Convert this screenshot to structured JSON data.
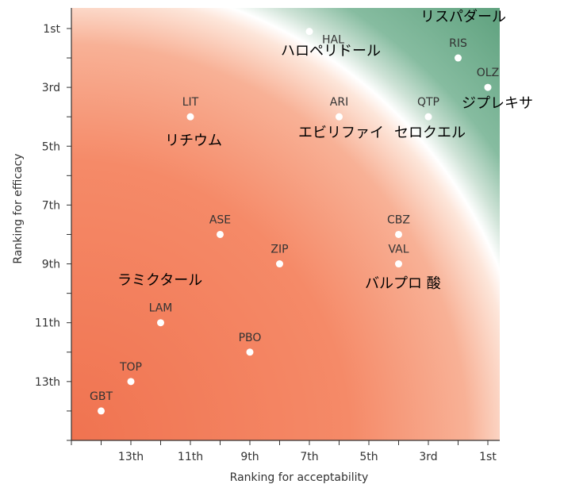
{
  "chart_data": {
    "type": "scatter",
    "xlabel": "Ranking for acceptability",
    "ylabel": "Ranking for efficacy",
    "xlim": [
      15,
      0.6
    ],
    "ylim": [
      15,
      0.3
    ],
    "x_ticks": [
      {
        "value": 13,
        "label": "13th"
      },
      {
        "value": 11,
        "label": "11th"
      },
      {
        "value": 9,
        "label": "9th"
      },
      {
        "value": 7,
        "label": "7th"
      },
      {
        "value": 5,
        "label": "5th"
      },
      {
        "value": 3,
        "label": "3rd"
      },
      {
        "value": 1,
        "label": "1st"
      }
    ],
    "y_ticks": [
      {
        "value": 1,
        "label": "1st"
      },
      {
        "value": 3,
        "label": "3rd"
      },
      {
        "value": 5,
        "label": "5th"
      },
      {
        "value": 7,
        "label": "7th"
      },
      {
        "value": 9,
        "label": "9th"
      },
      {
        "value": 11,
        "label": "11th"
      },
      {
        "value": 13,
        "label": "13th"
      }
    ],
    "points": [
      {
        "label": "HAL",
        "x": 7,
        "y": 1.1
      },
      {
        "label": "RIS",
        "x": 2,
        "y": 2
      },
      {
        "label": "OLZ",
        "x": 1,
        "y": 3
      },
      {
        "label": "LIT",
        "x": 11,
        "y": 4
      },
      {
        "label": "ARI",
        "x": 6,
        "y": 4
      },
      {
        "label": "QTP",
        "x": 3,
        "y": 4
      },
      {
        "label": "ASE",
        "x": 10,
        "y": 8
      },
      {
        "label": "CBZ",
        "x": 4,
        "y": 8
      },
      {
        "label": "ZIP",
        "x": 8,
        "y": 9
      },
      {
        "label": "VAL",
        "x": 4,
        "y": 9
      },
      {
        "label": "LAM",
        "x": 12,
        "y": 11
      },
      {
        "label": "PBO",
        "x": 9,
        "y": 12
      },
      {
        "label": "TOP",
        "x": 13,
        "y": 13
      },
      {
        "label": "GBT",
        "x": 14,
        "y": 14
      }
    ],
    "annotations": [
      {
        "text": "リスパダール"
      },
      {
        "text": "ハロペリドール"
      },
      {
        "text": "ジプレキサ"
      },
      {
        "text": "リチウム"
      },
      {
        "text": "エビリファイ"
      },
      {
        "text": "セロクエル"
      },
      {
        "text": "ラミクタール"
      },
      {
        "text": "バルプロ 酸"
      }
    ],
    "colors": {
      "low_region": "#f07350",
      "mid_region": "#fbe9e0",
      "high_region": "#5a9e7a",
      "point": "#ffffff",
      "axis": "#333333"
    },
    "grid": false
  }
}
